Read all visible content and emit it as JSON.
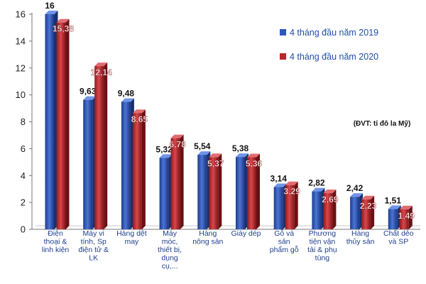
{
  "chart_data": {
    "type": "bar",
    "categories": [
      [
        "Điện",
        "thoại &",
        "linh kiện"
      ],
      [
        "Máy vi",
        "tính, Sp",
        "điện tử &",
        "LK"
      ],
      [
        "Hàng dệt",
        "may"
      ],
      [
        "Máy",
        "móc,",
        "thiết bị,",
        "dụng",
        "cụ,..."
      ],
      [
        "Hàng",
        "nông sản"
      ],
      [
        "Giày dép"
      ],
      [
        "Gỗ và",
        "sản",
        "phẩm gỗ"
      ],
      [
        "Phương",
        "tiện vận",
        "tải & phụ",
        "tùng"
      ],
      [
        "Hàng",
        "thủy sản"
      ],
      [
        "Chất dẻo",
        "và SP"
      ]
    ],
    "series": [
      {
        "name": "4 tháng đầu năm 2019",
        "color": "#2f57b8",
        "values": [
          16,
          9.63,
          9.48,
          5.32,
          5.54,
          5.38,
          3.14,
          2.82,
          2.42,
          1.51
        ],
        "labels": [
          "16",
          "9,63",
          "9,48",
          "5,32",
          "5,54",
          "5,38",
          "3,14",
          "2,82",
          "2,42",
          "1,51"
        ]
      },
      {
        "name": "4 tháng đầu năm 2020",
        "color": "#b8262b",
        "values": [
          15.38,
          12.14,
          8.65,
          6.78,
          5.37,
          5.36,
          3.29,
          2.69,
          2.23,
          1.49
        ],
        "labels": [
          "15,38",
          "12,14",
          "8,65",
          "6,78",
          "5,37",
          "5,36",
          "3,29",
          "2,69",
          "2,23",
          "1,49"
        ]
      }
    ],
    "yticks": [
      0,
      2,
      4,
      6,
      8,
      10,
      12,
      14,
      16
    ],
    "ylim": [
      0,
      16
    ],
    "unit_note": "(ĐVT: tỉ đô la Mỹ)",
    "legend_position": "top-right",
    "grid": false
  }
}
